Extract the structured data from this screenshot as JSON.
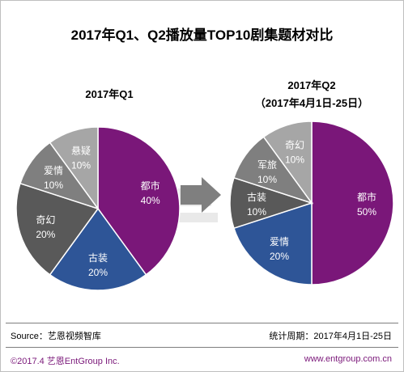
{
  "title": "2017年Q1、Q2播放量TOP10剧集题材对比",
  "chart_data": [
    {
      "type": "pie",
      "title": "2017年Q1",
      "subtitle": "",
      "slices": [
        {
          "label": "都市",
          "value": 40,
          "display": "40%",
          "color": "#7a1779"
        },
        {
          "label": "古装",
          "value": 20,
          "display": "20%",
          "color": "#2e5597"
        },
        {
          "label": "奇幻",
          "value": 20,
          "display": "20%",
          "color": "#595959"
        },
        {
          "label": "爱情",
          "value": 10,
          "display": "10%",
          "color": "#7f7f7f"
        },
        {
          "label": "悬疑",
          "value": 10,
          "display": "10%",
          "color": "#a6a6a6"
        }
      ]
    },
    {
      "type": "pie",
      "title": "2017年Q2",
      "subtitle": "（2017年4月1日-25日）",
      "slices": [
        {
          "label": "都市",
          "value": 50,
          "display": "50%",
          "color": "#7a1779"
        },
        {
          "label": "爱情",
          "value": 20,
          "display": "20%",
          "color": "#2e5597"
        },
        {
          "label": "古装",
          "value": 10,
          "display": "10%",
          "color": "#595959"
        },
        {
          "label": "军旅",
          "value": 10,
          "display": "10%",
          "color": "#7f7f7f"
        },
        {
          "label": "奇幻",
          "value": 10,
          "display": "10%",
          "color": "#a6a6a6"
        }
      ]
    }
  ],
  "footer": {
    "source": "Source：艺恩视频智库",
    "period": "统计周期：2017年4月1日-25日",
    "copyright": "©2017.4  艺恩EntGroup Inc.",
    "website": "www.entgroup.com.cn"
  },
  "colors": {
    "accent": "#7a1779",
    "border": "#bfbfbf"
  }
}
